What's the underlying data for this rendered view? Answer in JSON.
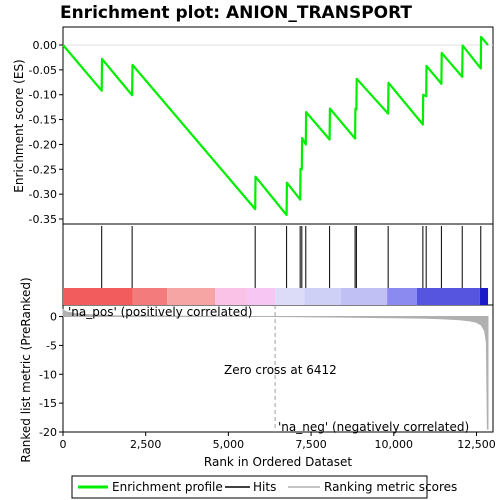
{
  "chart_data": {
    "type": "line",
    "title": "Enrichment plot: ANION_TRANSPORT",
    "xlabel": "Rank in Ordered Dataset",
    "ylabel_top": "Enrichment score (ES)",
    "ylabel_bottom": "Ranked list metric (PreRanked)",
    "xlim": [
      0,
      13000
    ],
    "x_ticks": [
      0,
      2500,
      5000,
      7500,
      10000,
      12500
    ],
    "x_tick_labels": [
      "0",
      "2,500",
      "5,000",
      "7,500",
      "10,000",
      "12,500"
    ],
    "es_ylim": [
      -0.35,
      0.0
    ],
    "es_ticks": [
      0.0,
      -0.05,
      -0.1,
      -0.15,
      -0.2,
      -0.25,
      -0.3,
      -0.35
    ],
    "es_tick_labels": [
      "0.00",
      "-0.05",
      "-0.10",
      "-0.15",
      "-0.20",
      "-0.25",
      "-0.30",
      "-0.35"
    ],
    "metric_ylim": [
      -20,
      2
    ],
    "metric_ticks": [
      0,
      -5,
      -10,
      -15,
      -20
    ],
    "metric_tick_labels": [
      "0",
      "-5",
      "-10",
      "-15",
      "-20"
    ],
    "enrichment_profile": {
      "x": [
        0,
        1170,
        1180,
        2090,
        2100,
        5810,
        5820,
        6760,
        6770,
        7170,
        7180,
        7220,
        7230,
        7340,
        7350,
        8060,
        8070,
        8830,
        8840,
        8870,
        8880,
        9830,
        9840,
        10880,
        10890,
        10980,
        10990,
        11440,
        11450,
        12070,
        12080,
        12630,
        12640,
        12850
      ],
      "y": [
        0.0,
        -0.092,
        -0.028,
        -0.101,
        -0.04,
        -0.33,
        -0.265,
        -0.342,
        -0.277,
        -0.311,
        -0.249,
        -0.25,
        -0.187,
        -0.2,
        -0.135,
        -0.19,
        -0.128,
        -0.188,
        -0.128,
        -0.13,
        -0.068,
        -0.138,
        -0.076,
        -0.16,
        -0.1,
        -0.103,
        -0.042,
        -0.078,
        -0.016,
        -0.064,
        -0.001,
        -0.047,
        0.016,
        0.0
      ]
    },
    "hits": [
      1170,
      2090,
      5810,
      6760,
      7170,
      7220,
      7340,
      8060,
      8830,
      8870,
      9830,
      10880,
      10980,
      11440,
      12070,
      12630
    ],
    "metric_profile": {
      "x": [
        0,
        100,
        400,
        800,
        1500,
        3000,
        5000,
        6412,
        8000,
        10000,
        11000,
        11500,
        12000,
        12300,
        12500,
        12650,
        12750,
        12800,
        12830,
        12850
      ],
      "y": [
        1.2,
        0.8,
        0.5,
        0.3,
        0.15,
        0.08,
        0.03,
        0.0,
        -0.08,
        -0.2,
        -0.3,
        -0.4,
        -0.55,
        -0.75,
        -1.0,
        -1.5,
        -2.5,
        -4.5,
        -19.5,
        -19.5
      ]
    },
    "zero_cross": 6412,
    "zero_cross_label": "Zero cross at 6412",
    "pos_label": "'na_pos' (positively correlated)",
    "neg_label": "'na_neg' (negatively correlated)",
    "legend": [
      "Enrichment profile",
      "Hits",
      "Ranking metric scores"
    ],
    "colors": {
      "profile": "#00ee00",
      "hits": "#000000",
      "metric": "#b0b0b0",
      "pos_label": "#cc0000",
      "neg_label": "#0000cc",
      "zero_cross_line": "#a0a0a0"
    },
    "heatmap_bands": [
      {
        "from": 0,
        "to": 2100,
        "color": "#f25c5c"
      },
      {
        "from": 2100,
        "to": 3150,
        "color": "#f47b7b"
      },
      {
        "from": 3150,
        "to": 4600,
        "color": "#f7a4a4"
      },
      {
        "from": 4600,
        "to": 5550,
        "color": "#fac2e6"
      },
      {
        "from": 5550,
        "to": 6412,
        "color": "#f7c6f2"
      },
      {
        "from": 6412,
        "to": 7300,
        "color": "#dcdcf8"
      },
      {
        "from": 7300,
        "to": 8400,
        "color": "#cfd0f6"
      },
      {
        "from": 8400,
        "to": 9800,
        "color": "#c0c0f4"
      },
      {
        "from": 9800,
        "to": 10700,
        "color": "#8a8af0"
      },
      {
        "from": 10700,
        "to": 12600,
        "color": "#5555e0"
      },
      {
        "from": 12600,
        "to": 12850,
        "color": "#1a1ac8"
      }
    ]
  }
}
